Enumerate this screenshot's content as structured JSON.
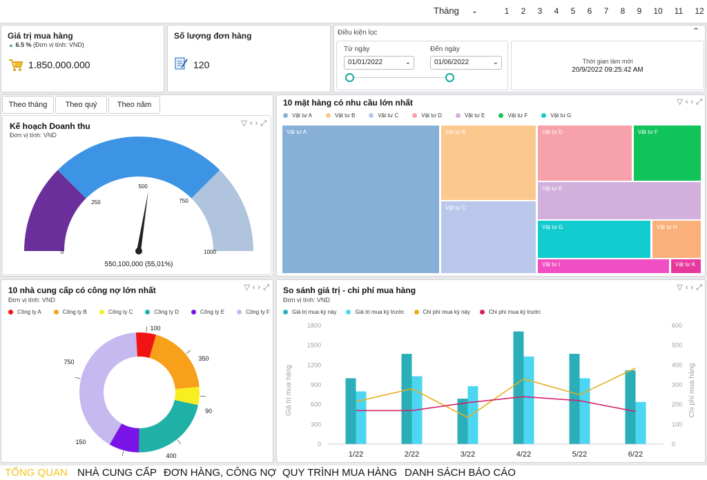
{
  "topbar": {
    "period_label": "Tháng",
    "months": [
      "1",
      "2",
      "3",
      "4",
      "5",
      "6",
      "7",
      "8",
      "9",
      "10",
      "11",
      "12"
    ]
  },
  "kpi_purchase": {
    "title": "Giá trị mua hàng",
    "growth": "6.5 %",
    "unit_note": "(Đơn vị tính: VND)",
    "value": "1.850.000.000"
  },
  "kpi_orders": {
    "title": "Số lượng đơn hàng",
    "value": "120"
  },
  "filter": {
    "title": "Điều kiện lọc",
    "from_label": "Từ ngày",
    "from_value": "01/01/2022",
    "to_label": "Đến ngày",
    "to_value": "01/06/2022",
    "refresh_label": "Thời gian làm mới",
    "refresh_value": "20/9/2022 09:25:42 AM"
  },
  "period_tabs": [
    "Theo tháng",
    "Theo quý",
    "Theo năm"
  ],
  "gauge": {
    "title": "Kế hoạch Doanh thu",
    "unit": "Đơn vị tính: VND",
    "ticks": [
      "0",
      "250",
      "500",
      "750",
      "1000"
    ],
    "readout": "550,100,000 (55,01%)",
    "value_fraction": 0.5501,
    "bands": [
      {
        "from": 0,
        "to": 250,
        "color": "#6a2f9a"
      },
      {
        "from": 250,
        "to": 750,
        "color": "#3d94e4"
      },
      {
        "from": 750,
        "to": 1000,
        "color": "#b0c4de"
      }
    ]
  },
  "treemap": {
    "title": "10 mặt hàng có nhu cầu lớn nhất",
    "legend": [
      {
        "name": "Vật tư A",
        "color": "#86b0d8"
      },
      {
        "name": "Vật tư B",
        "color": "#fbc88e"
      },
      {
        "name": "Vật tư C",
        "color": "#b9c7ea"
      },
      {
        "name": "Vật tư D",
        "color": "#f7a1aa"
      },
      {
        "name": "Vật tư E",
        "color": "#d1b0dc"
      },
      {
        "name": "Vật tư F",
        "color": "#11c45a"
      },
      {
        "name": "Vật tư G",
        "color": "#13ccd0"
      }
    ],
    "tiles": [
      {
        "name": "Vật tư A",
        "color": "#86b0d8"
      },
      {
        "name": "Vật tư B",
        "color": "#fbc88e"
      },
      {
        "name": "Vật tư C",
        "color": "#b9c7ea"
      },
      {
        "name": "Vật tư D",
        "color": "#f7a1aa"
      },
      {
        "name": "Vật tư F",
        "color": "#11c45a"
      },
      {
        "name": "Vật tư E",
        "color": "#d1b0dc"
      },
      {
        "name": "Vật tư G",
        "color": "#13ccd0"
      },
      {
        "name": "Vật tư H",
        "color": "#fbb07a"
      },
      {
        "name": "Vật tư I",
        "color": "#f04fc4"
      },
      {
        "name": "Vật tư K",
        "color": "#e7399d"
      }
    ]
  },
  "donut": {
    "title": "10 nhà cung cấp có công nợ lớn nhất",
    "unit": "Đơn vị tính: VND",
    "legend": [
      {
        "name": "Công ty A",
        "color": "#f01414"
      },
      {
        "name": "Công ty B",
        "color": "#f8a01a"
      },
      {
        "name": "Công ty C",
        "color": "#f7f01e"
      },
      {
        "name": "Công ty D",
        "color": "#1fb0a6"
      },
      {
        "name": "Công ty E",
        "color": "#7a14e6"
      },
      {
        "name": "Công ty F",
        "color": "#c5b9ef"
      }
    ]
  },
  "combo": {
    "title": "So sánh giá trị - chi phí mua hàng",
    "unit": "Đơn vị tính: VND",
    "ylabel_left": "Giá trị mua hàng",
    "ylabel_right": "Chi phí mua hàng",
    "legend": [
      {
        "name": "Giá trị mua kỳ này",
        "color": "#2aaeb8"
      },
      {
        "name": "Giá trị mua kỳ trước",
        "color": "#4dd6f2"
      },
      {
        "name": "Chi phí mua kỳ này",
        "color": "#e9ad1c"
      },
      {
        "name": "Chi phí mua kỳ trước",
        "color": "#d31f6a"
      }
    ]
  },
  "chart_data": [
    {
      "type": "donut",
      "title": "10 nhà cung cấp có công nợ lớn nhất",
      "categories": [
        "Công ty A",
        "Công ty B",
        "Công ty C",
        "Công ty D",
        "Công ty E",
        "Công ty F"
      ],
      "values": [
        100,
        350,
        90,
        400,
        150,
        750
      ],
      "labels": [
        "100",
        "350",
        "90",
        "400",
        "150",
        "750"
      ],
      "colors": [
        "#f01414",
        "#f8a01a",
        "#f7f01e",
        "#1fb0a6",
        "#7a14e6",
        "#c5b9ef"
      ],
      "legend": "top"
    },
    {
      "type": "treemap",
      "title": "10 mặt hàng có nhu cầu lớn nhất",
      "categories": [
        "Vật tư A",
        "Vật tư B",
        "Vật tư C",
        "Vật tư D",
        "Vật tư F",
        "Vật tư E",
        "Vật tư G",
        "Vật tư H",
        "Vật tư I",
        "Vật tư K"
      ],
      "values": [
        32.0,
        9.5,
        9.6,
        9.3,
        5.1,
        5.5,
        5.6,
        2.6,
        4.6,
        1.6
      ],
      "legend": "top"
    },
    {
      "type": "bar",
      "title": "So sánh giá trị - chi phí mua hàng",
      "categories": [
        "1/22",
        "2/22",
        "3/22",
        "4/22",
        "5/22",
        "6/22"
      ],
      "ylim": [
        0,
        1800
      ],
      "yticks": [
        0,
        300,
        600,
        900,
        1200,
        1500,
        1800
      ],
      "y2lim": [
        0,
        600
      ],
      "y2ticks": [
        0,
        100,
        200,
        300,
        400,
        500,
        600
      ],
      "ylabel": "Giá trị mua hàng",
      "y2label": "Chi phí mua hàng",
      "series": [
        {
          "name": "Giá trị mua kỳ này",
          "kind": "bar",
          "axis": "left",
          "values": [
            1000,
            1370,
            690,
            1710,
            1370,
            1120
          ]
        },
        {
          "name": "Giá trị mua kỳ trước",
          "kind": "bar",
          "axis": "left",
          "values": [
            800,
            1030,
            880,
            1330,
            1000,
            640
          ]
        },
        {
          "name": "Chi phí mua kỳ này",
          "kind": "line",
          "axis": "right",
          "values": [
            215,
            280,
            135,
            330,
            250,
            385
          ]
        },
        {
          "name": "Chi phí mua kỳ trước",
          "kind": "line",
          "axis": "right",
          "values": [
            170,
            170,
            210,
            240,
            220,
            165
          ]
        }
      ],
      "legend": "top-left"
    }
  ],
  "nav": [
    "TỔNG QUAN",
    "NHÀ CUNG CẤP",
    "ĐƠN HÀNG, CÔNG NỢ",
    "QUY TRÌNH MUA HÀNG",
    "DANH SÁCH BÁO CÁO"
  ]
}
